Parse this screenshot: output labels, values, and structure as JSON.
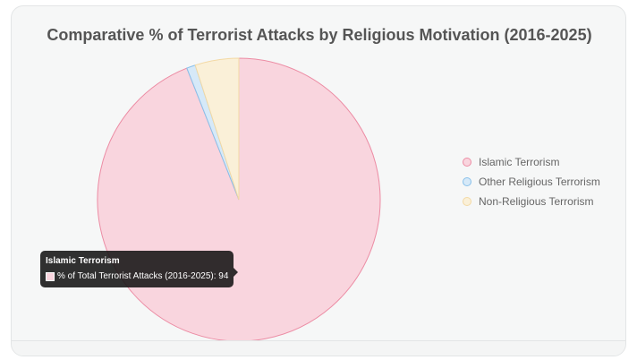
{
  "chart_data": {
    "type": "pie",
    "title": "Comparative % of Terrorist Attacks by Religious Motivation (2016-2025)",
    "dataset_label": "% of Total Terrorist Attacks (2016-2025)",
    "categories": [
      "Islamic Terrorism",
      "Other Religious Terrorism",
      "Non-Religious Terrorism"
    ],
    "values": [
      94,
      1,
      5
    ],
    "colors": {
      "fill": [
        "#f9d5de",
        "#d6e9f8",
        "#faf0d8"
      ],
      "border": [
        "#ec8ca4",
        "#88c0ea",
        "#f3d9a4"
      ]
    },
    "legend_position": "right"
  },
  "tooltip": {
    "title": "Islamic Terrorism",
    "label": "% of Total Terrorist Attacks (2016-2025)",
    "value": "94",
    "swatch_color": "#f9d5de"
  }
}
